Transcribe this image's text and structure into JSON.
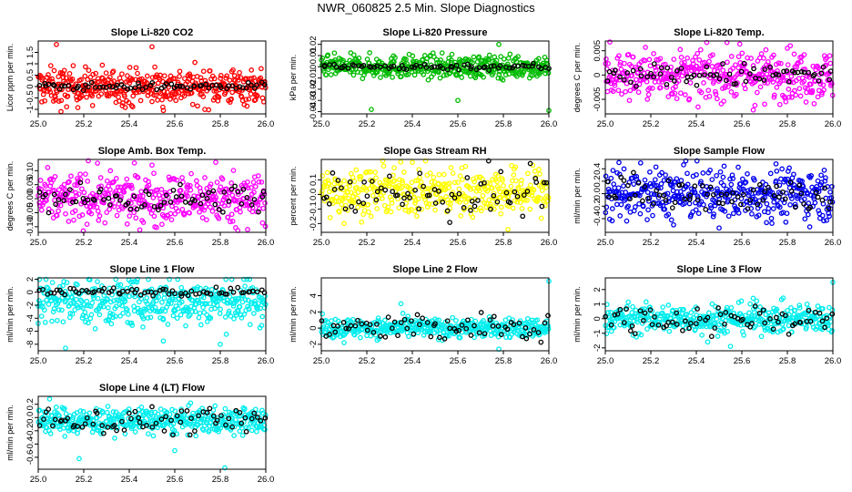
{
  "figure": {
    "title": "NWR_060825  2.5 Min. Slope Diagnostics"
  },
  "chart_data": [
    {
      "type": "scatter",
      "title": "Slope Li-820 CO2",
      "xlabel": "",
      "ylabel": "Licor ppm per min.",
      "xlim": [
        25.0,
        26.0
      ],
      "ylim": [
        -1.2,
        2.0
      ],
      "xticks": [
        "25.0",
        "25.2",
        "25.4",
        "25.6",
        "25.8",
        "26.0"
      ],
      "yticks": [
        -1.0,
        -0.5,
        0.0,
        0.5,
        1.0,
        1.5
      ],
      "ytick_labels": [
        "-1",
        "-0.5",
        "0",
        "0.5",
        "1",
        "1.5"
      ],
      "color": "#ff0000",
      "series_center": 0.0,
      "series_spread": 0.4,
      "ref_center": 0.0,
      "ref_spread": 0.08,
      "outliers": [
        [
          25.08,
          1.85
        ],
        [
          25.5,
          1.75
        ],
        [
          25.1,
          -1.1
        ],
        [
          25.55,
          -1.05
        ]
      ]
    },
    {
      "type": "scatter",
      "title": "Slope Li-820 Pressure",
      "xlabel": "",
      "ylabel": "kPa per min.",
      "xlim": [
        25.0,
        26.0
      ],
      "ylim": [
        -0.042,
        0.023
      ],
      "xticks": [
        "25.0",
        "25.2",
        "25.4",
        "25.6",
        "25.8",
        "26.0"
      ],
      "yticks": [
        -0.04,
        -0.03,
        -0.02,
        -0.01,
        0.0,
        0.01,
        0.02
      ],
      "ytick_labels": [
        "-0.04",
        "-0.03",
        "-0.02",
        "-0.01",
        "0",
        "0.01",
        "0.02"
      ],
      "color": "#00bb00",
      "series_center": 0.0,
      "series_spread": 0.005,
      "ref_center": 0.0,
      "ref_spread": 0.0015,
      "outliers": [
        [
          25.22,
          -0.038
        ],
        [
          26.0,
          -0.039
        ],
        [
          25.78,
          0.02
        ],
        [
          25.6,
          -0.03
        ]
      ]
    },
    {
      "type": "scatter",
      "title": "Slope Li-820 Temp.",
      "xlabel": "",
      "ylabel": "degrees C per min.",
      "xlim": [
        25.0,
        26.0
      ],
      "ylim": [
        -0.008,
        0.007
      ],
      "xticks": [
        "25.0",
        "25.2",
        "25.4",
        "25.6",
        "25.8",
        "26.0"
      ],
      "yticks": [
        -0.005,
        0.0,
        0.005
      ],
      "ytick_labels": [
        "-0.005",
        "0",
        "0.005"
      ],
      "color": "#ff00ff",
      "series_center": 0.0,
      "series_spread": 0.0025,
      "ref_center": 0.0,
      "ref_spread": 0.0012,
      "outliers": [
        [
          25.02,
          0.0068
        ],
        [
          25.65,
          -0.0072
        ],
        [
          25.8,
          0.0055
        ],
        [
          25.7,
          -0.006
        ]
      ]
    },
    {
      "type": "scatter",
      "title": "Slope Amb. Box Temp.",
      "xlabel": "",
      "ylabel": "degrees C per min.",
      "xlim": [
        25.0,
        26.0
      ],
      "ylim": [
        -0.12,
        0.14
      ],
      "xticks": [
        "25.0",
        "25.2",
        "25.4",
        "25.6",
        "25.8",
        "26.0"
      ],
      "yticks": [
        -0.1,
        -0.05,
        0.0,
        0.05,
        0.1
      ],
      "ytick_labels": [
        "-0.10",
        "-0.05",
        "0.00",
        "0.05",
        "0.10"
      ],
      "color": "#ff00ff",
      "series_center": 0.0,
      "series_spread": 0.045,
      "ref_center": 0.0,
      "ref_spread": 0.025,
      "outliers": [
        [
          25.22,
          0.135
        ],
        [
          25.78,
          0.13
        ],
        [
          25.92,
          -0.11
        ],
        [
          25.5,
          0.12
        ]
      ]
    },
    {
      "type": "scatter",
      "title": "Slope Gas Stream RH",
      "xlabel": "",
      "ylabel": "percent per min.",
      "xlim": [
        25.0,
        26.0
      ],
      "ylim": [
        -0.26,
        0.24
      ],
      "xticks": [
        "25.0",
        "25.2",
        "25.4",
        "25.6",
        "25.8",
        "26.0"
      ],
      "yticks": [
        -0.2,
        -0.1,
        0.0,
        0.1
      ],
      "ytick_labels": [
        "-0.2",
        "-0.1",
        "0.0",
        "0.1"
      ],
      "color": "#ffff00",
      "series_center": 0.02,
      "series_spread": 0.08,
      "ref_center": 0.0,
      "ref_spread": 0.1,
      "outliers": [
        [
          25.82,
          -0.24
        ],
        [
          25.4,
          0.22
        ],
        [
          25.1,
          -0.2
        ]
      ]
    },
    {
      "type": "scatter",
      "title": "Slope Sample Flow",
      "xlabel": "",
      "ylabel": "ml/min per min.",
      "xlim": [
        25.0,
        26.0
      ],
      "ylim": [
        -0.62,
        0.55
      ],
      "xticks": [
        "25.0",
        "25.2",
        "25.4",
        "25.6",
        "25.8",
        "26.0"
      ],
      "yticks": [
        -0.4,
        -0.2,
        0.0,
        0.2,
        0.4
      ],
      "ytick_labels": [
        "-0.4",
        "-0.2",
        "0.0",
        "0.2",
        "0.4"
      ],
      "color": "#0000ee",
      "series_center": 0.0,
      "series_spread": 0.2,
      "ref_center": 0.0,
      "ref_spread": 0.15,
      "outliers": [
        [
          25.06,
          0.5
        ],
        [
          25.5,
          -0.55
        ],
        [
          25.75,
          0.48
        ],
        [
          25.3,
          -0.5
        ]
      ]
    },
    {
      "type": "scatter",
      "title": "Slope Line 1 Flow",
      "xlabel": "",
      "ylabel": "ml/min per min.",
      "xlim": [
        25.0,
        26.0
      ],
      "ylim": [
        -9.0,
        2.2
      ],
      "xticks": [
        "25.0",
        "25.2",
        "25.4",
        "25.6",
        "25.8",
        "26.0"
      ],
      "yticks": [
        -8,
        -6,
        -4,
        -2,
        0,
        2
      ],
      "ytick_labels": [
        "-8",
        "-6",
        "-4",
        "-2",
        "0",
        "2"
      ],
      "color": "#00eeee",
      "series_center": -1.5,
      "series_spread": 1.8,
      "ref_center": 0.1,
      "ref_spread": 0.3,
      "outliers": [
        [
          25.12,
          -8.6
        ],
        [
          25.8,
          -8.0
        ],
        [
          25.0,
          -4.8
        ],
        [
          25.55,
          -7.5
        ]
      ]
    },
    {
      "type": "scatter",
      "title": "Slope Line 2 Flow",
      "xlabel": "",
      "ylabel": "ml/min per min.",
      "xlim": [
        25.0,
        26.0
      ],
      "ylim": [
        -2.8,
        6.2
      ],
      "xticks": [
        "25.0",
        "25.2",
        "25.4",
        "25.6",
        "25.8",
        "26.0"
      ],
      "yticks": [
        -2,
        0,
        2,
        4
      ],
      "ytick_labels": [
        "-2",
        "0",
        "2",
        "4"
      ],
      "color": "#00eeee",
      "series_center": 0.0,
      "series_spread": 0.6,
      "ref_center": 0.0,
      "ref_spread": 0.9,
      "outliers": [
        [
          26.0,
          5.8
        ],
        [
          25.78,
          -2.6
        ],
        [
          25.35,
          3.0
        ],
        [
          25.1,
          -1.8
        ]
      ]
    },
    {
      "type": "scatter",
      "title": "Slope Line 3 Flow",
      "xlabel": "",
      "ylabel": "ml/min per min.",
      "xlim": [
        25.0,
        26.0
      ],
      "ylim": [
        -2.2,
        2.8
      ],
      "xticks": [
        "25.0",
        "25.2",
        "25.4",
        "25.6",
        "25.8",
        "26.0"
      ],
      "yticks": [
        -2,
        -1,
        0,
        1,
        2
      ],
      "ytick_labels": [
        "-2",
        "-1",
        "0",
        "1",
        "2"
      ],
      "color": "#00eeee",
      "series_center": 0.0,
      "series_spread": 0.5,
      "ref_center": 0.0,
      "ref_spread": 0.5,
      "outliers": [
        [
          26.0,
          2.5
        ],
        [
          25.45,
          -1.6
        ],
        [
          25.55,
          -1.9
        ],
        [
          25.65,
          1.4
        ]
      ]
    },
    {
      "type": "scatter",
      "title": "Slope Line 4 (LT) Flow",
      "xlabel": "",
      "ylabel": "ml/min per min.",
      "xlim": [
        25.0,
        26.0
      ],
      "ylim": [
        -0.78,
        0.32
      ],
      "xticks": [
        "25.0",
        "25.2",
        "25.4",
        "25.6",
        "25.8",
        "26.0"
      ],
      "yticks": [
        -0.6,
        -0.4,
        -0.2,
        0.0,
        0.2
      ],
      "ytick_labels": [
        "-0.6",
        "-0.4",
        "-0.2",
        "0.0",
        "0.2"
      ],
      "color": "#00eeee",
      "series_center": -0.05,
      "series_spread": 0.1,
      "ref_center": -0.05,
      "ref_spread": 0.1,
      "outliers": [
        [
          25.18,
          -0.62
        ],
        [
          25.82,
          -0.76
        ],
        [
          25.6,
          -0.5
        ],
        [
          25.05,
          0.28
        ]
      ]
    }
  ]
}
